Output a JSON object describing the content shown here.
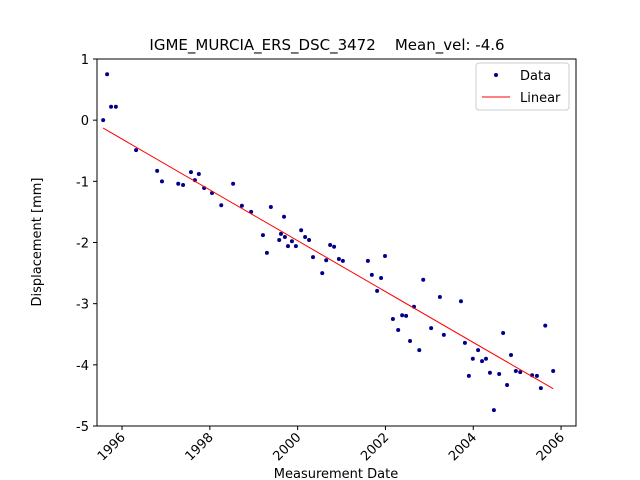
{
  "chart_data": {
    "type": "scatter",
    "title": "IGME_MURCIA_ERS_DSC_3472    Mean_vel: -4.6",
    "xlabel": "Measurement Date",
    "ylabel": "Displacement [mm]",
    "xlim": [
      1995.43,
      2006.34
    ],
    "ylim": [
      -5,
      1
    ],
    "xticks": [
      1996,
      1998,
      2000,
      2002,
      2004,
      2006
    ],
    "yticks": [
      -5,
      -4,
      -3,
      -2,
      -1,
      0,
      1
    ],
    "legend": "upper right",
    "series": [
      {
        "name": "Data",
        "type": "scatter",
        "color": "#00008b",
        "x": [
          1995.57,
          1995.66,
          1995.75,
          1995.86,
          1996.32,
          1996.8,
          1996.91,
          1997.28,
          1997.39,
          1997.57,
          1997.66,
          1997.75,
          1997.87,
          1998.05,
          1998.26,
          1998.53,
          1998.73,
          1998.94,
          1999.21,
          1999.3,
          1999.39,
          1999.58,
          1999.62,
          1999.69,
          1999.71,
          1999.78,
          1999.87,
          1999.96,
          2000.08,
          2000.17,
          2000.26,
          2000.35,
          2000.56,
          2000.65,
          2000.74,
          2000.83,
          2000.94,
          2001.03,
          2001.6,
          2001.69,
          2001.81,
          2001.9,
          2001.99,
          2002.17,
          2002.29,
          2002.38,
          2002.47,
          2002.56,
          2002.65,
          2002.77,
          2002.86,
          2003.04,
          2003.24,
          2003.33,
          2003.72,
          2003.81,
          2003.9,
          2003.99,
          2004.11,
          2004.2,
          2004.29,
          2004.38,
          2004.47,
          2004.59,
          2004.68,
          2004.77,
          2004.86,
          2004.97,
          2005.07,
          2005.34,
          2005.45,
          2005.54,
          2005.64,
          2005.82
        ],
        "values": [
          0.0,
          0.75,
          0.22,
          0.22,
          -0.49,
          -0.83,
          -1.0,
          -1.04,
          -1.06,
          -0.85,
          -0.98,
          -0.88,
          -1.11,
          -1.19,
          -1.39,
          -1.04,
          -1.4,
          -1.5,
          -1.88,
          -2.17,
          -1.42,
          -1.96,
          -1.86,
          -1.58,
          -1.91,
          -2.06,
          -1.98,
          -2.06,
          -1.8,
          -1.91,
          -1.96,
          -2.24,
          -2.5,
          -2.29,
          -2.04,
          -2.07,
          -2.27,
          -2.3,
          -2.3,
          -2.53,
          -2.79,
          -2.58,
          -2.22,
          -3.25,
          -3.43,
          -3.19,
          -3.2,
          -3.61,
          -3.05,
          -3.76,
          -2.61,
          -3.4,
          -2.89,
          -3.51,
          -2.96,
          -3.64,
          -4.18,
          -3.9,
          -3.76,
          -3.94,
          -3.9,
          -4.13,
          -4.74,
          -4.15,
          -3.48,
          -4.33,
          -3.84,
          -4.1,
          -4.12,
          -4.17,
          -4.18,
          -4.38,
          -3.36,
          -4.1
        ]
      },
      {
        "name": "Linear",
        "type": "line",
        "color": "#ff0000",
        "x": [
          1995.57,
          2005.82
        ],
        "values": [
          -0.13,
          -4.39
        ]
      }
    ]
  }
}
